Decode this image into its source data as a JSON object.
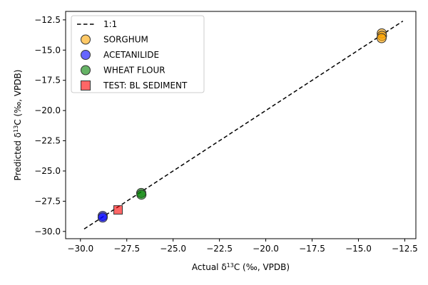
{
  "chart_data": {
    "type": "scatter",
    "xlabel": "Actual δ13C (‰, VPDB)",
    "ylabel": "Predicted δ13C (‰, VPDB)",
    "xlim": [
      -30.8,
      -11.9
    ],
    "ylim": [
      -30.6,
      -11.8
    ],
    "xticks": [
      -30.0,
      -27.5,
      -25.0,
      -22.5,
      -20.0,
      -17.5,
      -15.0,
      -12.5
    ],
    "yticks": [
      -30.0,
      -27.5,
      -25.0,
      -22.5,
      -20.0,
      -17.5,
      -15.0,
      -12.5
    ],
    "xtick_labels": [
      "−30.0",
      "−27.5",
      "−25.0",
      "−22.5",
      "−20.0",
      "−17.5",
      "−15.0",
      "−12.5"
    ],
    "ytick_labels": [
      "−30.0",
      "−27.5",
      "−25.0",
      "−22.5",
      "−20.0",
      "−17.5",
      "−15.0",
      "−12.5"
    ],
    "grid": false,
    "legend_position": "top-left",
    "reference_line": {
      "name": "1:1",
      "x": [
        -29.8,
        -12.6
      ],
      "y": [
        -29.8,
        -12.6
      ],
      "style": "dashed",
      "color": "#000000"
    },
    "series": [
      {
        "name": "SORGHUM",
        "marker": "circle",
        "color": "#FFA500",
        "points": [
          {
            "x": -13.74,
            "y": -13.62
          },
          {
            "x": -13.73,
            "y": -13.82
          },
          {
            "x": -13.75,
            "y": -14.01
          }
        ]
      },
      {
        "name": "ACETANILIDE",
        "marker": "circle",
        "color": "#0000FF",
        "points": [
          {
            "x": -28.8,
            "y": -28.72
          },
          {
            "x": -28.8,
            "y": -28.85
          }
        ]
      },
      {
        "name": "WHEAT FLOUR",
        "marker": "circle",
        "color": "#008000",
        "points": [
          {
            "x": -26.72,
            "y": -26.82
          },
          {
            "x": -26.71,
            "y": -26.96
          }
        ]
      },
      {
        "name": "TEST: BL SEDIMENT",
        "marker": "square",
        "color": "#FF0000",
        "points": [
          {
            "x": -27.97,
            "y": -28.22
          }
        ]
      }
    ]
  }
}
